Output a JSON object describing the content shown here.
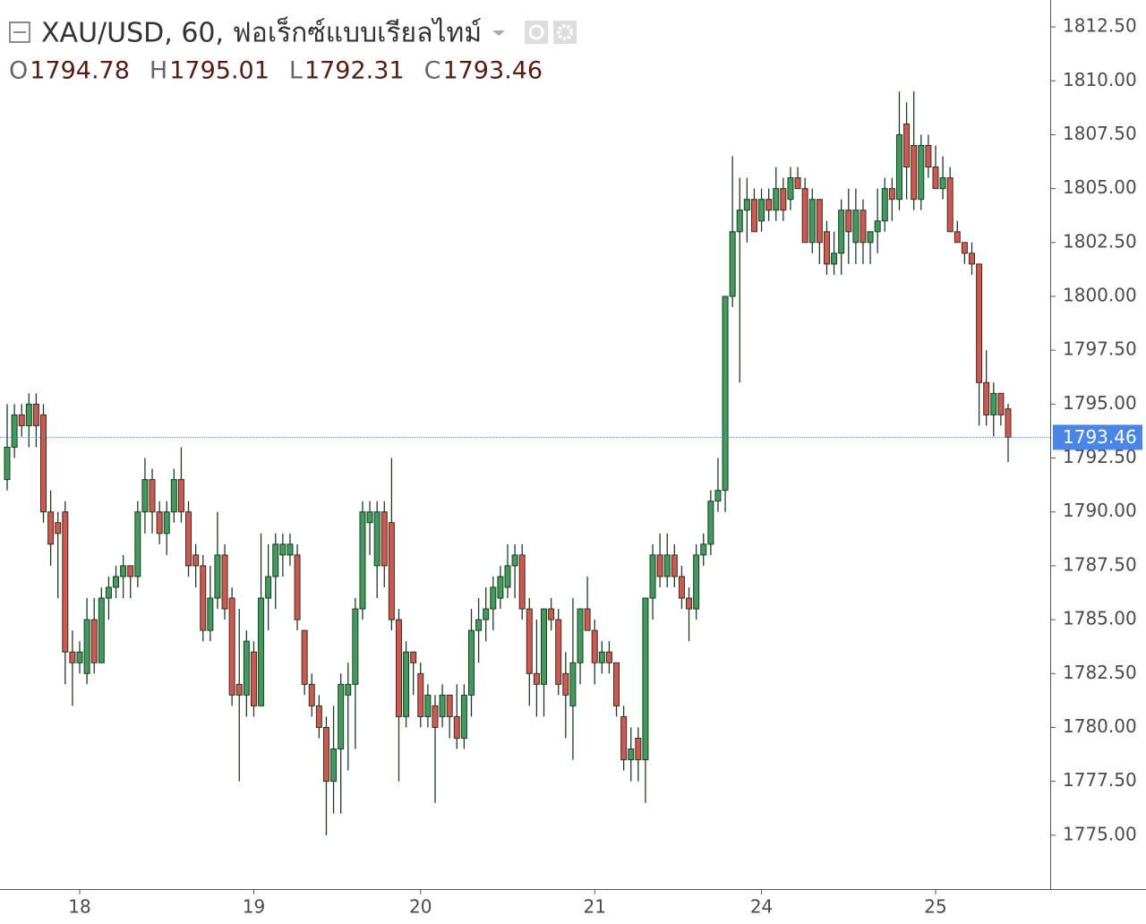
{
  "chart_data": {
    "type": "candlestick",
    "title": "XAU/USD, 60, ฟอเร็กซ์แบบเรียลไทม์",
    "ohlc_labels": [
      "O",
      "H",
      "L",
      "C"
    ],
    "up_color": "#3f9c5c",
    "down_color": "#d9534f",
    "wick_color": "#1f3b26",
    "last_price_color": "#4a86e8",
    "ylim": [
      1772.5,
      1813.75
    ],
    "yticks": [
      {
        "value": 1775,
        "label": "1775.00"
      },
      {
        "value": 1777.5,
        "label": "1777.50"
      },
      {
        "value": 1780,
        "label": "1780.00"
      },
      {
        "value": 1782.5,
        "label": "1782.50"
      },
      {
        "value": 1785,
        "label": "1785.00"
      },
      {
        "value": 1787.5,
        "label": "1787.50"
      },
      {
        "value": 1790,
        "label": "1790.00"
      },
      {
        "value": 1792.5,
        "label": "1792.50"
      },
      {
        "value": 1795,
        "label": "1795.00"
      },
      {
        "value": 1797.5,
        "label": "1797.50"
      },
      {
        "value": 1800,
        "label": "1800.00"
      },
      {
        "value": 1802.5,
        "label": "1802.50"
      },
      {
        "value": 1805,
        "label": "1805.00"
      },
      {
        "value": 1807.5,
        "label": "1807.50"
      },
      {
        "value": 1810,
        "label": "1810.00"
      },
      {
        "value": 1812.5,
        "label": "1812.50"
      }
    ],
    "categories": [
      null,
      null,
      null,
      null,
      null,
      null,
      null,
      null,
      null,
      null,
      "18",
      null,
      null,
      null,
      null,
      null,
      null,
      null,
      null,
      null,
      null,
      null,
      null,
      null,
      null,
      null,
      null,
      null,
      null,
      null,
      null,
      null,
      null,
      null,
      "19",
      null,
      null,
      null,
      null,
      null,
      null,
      null,
      null,
      null,
      null,
      null,
      null,
      null,
      null,
      null,
      null,
      null,
      null,
      null,
      null,
      null,
      null,
      "20",
      null,
      null,
      null,
      null,
      null,
      null,
      null,
      null,
      null,
      null,
      null,
      null,
      null,
      null,
      null,
      null,
      null,
      null,
      null,
      null,
      null,
      null,
      null,
      "21",
      null,
      null,
      null,
      null,
      null,
      null,
      null,
      null,
      null,
      null,
      null,
      null,
      null,
      null,
      null,
      null,
      null,
      null,
      null,
      null,
      null,
      null,
      "24",
      null,
      null,
      null,
      null,
      null,
      null,
      null,
      null,
      null,
      null,
      null,
      null,
      null,
      null,
      null,
      null,
      null,
      null,
      null,
      null,
      null,
      null,
      null,
      "25",
      null,
      null,
      null,
      null,
      null,
      null,
      null,
      null,
      null,
      null
    ],
    "ohlc": [
      [
        1791.5,
        1795,
        1791,
        1793
      ],
      [
        1793,
        1795,
        1792.5,
        1794.5
      ],
      [
        1794.5,
        1795,
        1793.5,
        1794
      ],
      [
        1794,
        1795.5,
        1793,
        1795
      ],
      [
        1795,
        1795.5,
        1793,
        1794
      ],
      [
        1794.5,
        1795,
        1789.5,
        1790
      ],
      [
        1790,
        1791,
        1787.5,
        1788.5
      ],
      [
        1789.5,
        1790,
        1786,
        1789
      ],
      [
        1790,
        1790.5,
        1782,
        1783.5
      ],
      [
        1783.5,
        1784.5,
        1781,
        1783
      ],
      [
        1783,
        1784,
        1782.5,
        1783.5
      ],
      [
        1782.5,
        1786,
        1782,
        1785
      ],
      [
        1785,
        1786,
        1782.5,
        1783
      ],
      [
        1783,
        1786.5,
        1783,
        1786
      ],
      [
        1786,
        1787,
        1785,
        1786.5
      ],
      [
        1786.5,
        1787.5,
        1786,
        1787
      ],
      [
        1787,
        1788,
        1786,
        1787.5
      ],
      [
        1787.5,
        1787.5,
        1786,
        1787
      ],
      [
        1787,
        1790.5,
        1786.5,
        1790
      ],
      [
        1790,
        1792.5,
        1789,
        1791.5
      ],
      [
        1791.5,
        1792,
        1789,
        1790
      ],
      [
        1790,
        1790.5,
        1788.5,
        1789
      ],
      [
        1789,
        1790.5,
        1788,
        1790
      ],
      [
        1790,
        1792,
        1789.5,
        1791.5
      ],
      [
        1791.5,
        1793,
        1789.5,
        1790
      ],
      [
        1790,
        1790.5,
        1787,
        1787.5
      ],
      [
        1788,
        1788.5,
        1786.5,
        1787.5
      ],
      [
        1787.5,
        1788,
        1784,
        1784.5
      ],
      [
        1784.5,
        1787.5,
        1784,
        1786
      ],
      [
        1786,
        1790,
        1785.5,
        1788
      ],
      [
        1788,
        1788.5,
        1785,
        1785.5
      ],
      [
        1786,
        1786.5,
        1781,
        1781.5
      ],
      [
        1782,
        1785.5,
        1777.5,
        1781.5
      ],
      [
        1781.5,
        1784.5,
        1780.5,
        1784
      ],
      [
        1783.5,
        1784,
        1780.5,
        1781
      ],
      [
        1781,
        1789,
        1781,
        1786
      ],
      [
        1786,
        1788.5,
        1784.5,
        1787
      ],
      [
        1787,
        1789,
        1785.5,
        1788.5
      ],
      [
        1788,
        1789,
        1787,
        1788.5
      ],
      [
        1788,
        1789,
        1787.5,
        1788.5
      ],
      [
        1788,
        1788.5,
        1784.5,
        1785
      ],
      [
        1784.5,
        1784.5,
        1781.5,
        1782
      ],
      [
        1782,
        1782.5,
        1780.5,
        1781
      ],
      [
        1781,
        1781.5,
        1779.5,
        1780
      ],
      [
        1780,
        1780.5,
        1775,
        1777.5
      ],
      [
        1777.5,
        1781,
        1776,
        1779
      ],
      [
        1779,
        1782.5,
        1776,
        1782
      ],
      [
        1781.5,
        1783,
        1778,
        1782
      ],
      [
        1782,
        1786,
        1779,
        1785.5
      ],
      [
        1785.5,
        1790.5,
        1785,
        1790
      ],
      [
        1789.5,
        1790.5,
        1788,
        1790
      ],
      [
        1787.5,
        1790.5,
        1786,
        1790
      ],
      [
        1790,
        1790.5,
        1786.5,
        1787.5
      ],
      [
        1789.5,
        1792.5,
        1784.5,
        1785
      ],
      [
        1785,
        1785.5,
        1777.5,
        1780.5
      ],
      [
        1780.5,
        1784,
        1780,
        1783.5
      ],
      [
        1783.5,
        1783.5,
        1781.5,
        1783
      ],
      [
        1782.5,
        1783,
        1780,
        1780.5
      ],
      [
        1780.5,
        1782,
        1780,
        1781.5
      ],
      [
        1781,
        1781.5,
        1776.5,
        1780
      ],
      [
        1780.5,
        1782,
        1780,
        1781.5
      ],
      [
        1781.5,
        1781.5,
        1779.5,
        1780.5
      ],
      [
        1780.5,
        1782,
        1779,
        1779.5
      ],
      [
        1779.5,
        1782,
        1779,
        1781.5
      ],
      [
        1781.5,
        1785.5,
        1780.5,
        1784.5
      ],
      [
        1784.5,
        1786,
        1783,
        1785
      ],
      [
        1785,
        1786.5,
        1784,
        1785.5
      ],
      [
        1785.5,
        1787,
        1784.5,
        1786.5
      ],
      [
        1786,
        1787.5,
        1785.5,
        1787
      ],
      [
        1786.5,
        1788.5,
        1786,
        1787.5
      ],
      [
        1787.5,
        1788.5,
        1786,
        1788
      ],
      [
        1788,
        1788.5,
        1785,
        1785.5
      ],
      [
        1785.5,
        1786,
        1781,
        1782.5
      ],
      [
        1782.5,
        1785,
        1780.5,
        1782
      ],
      [
        1782,
        1785.5,
        1780.5,
        1785.5
      ],
      [
        1785.5,
        1786,
        1784.5,
        1785
      ],
      [
        1785,
        1785.5,
        1781.5,
        1782
      ],
      [
        1782.5,
        1783.5,
        1779.5,
        1781.5
      ],
      [
        1781,
        1786,
        1778.5,
        1783
      ],
      [
        1783,
        1785.5,
        1782,
        1785.5
      ],
      [
        1785.5,
        1787,
        1784.5,
        1784.5
      ],
      [
        1784.5,
        1785,
        1782,
        1783
      ],
      [
        1783,
        1784,
        1782.5,
        1783.5
      ],
      [
        1783.5,
        1784,
        1782.5,
        1783
      ],
      [
        1783,
        1783,
        1780.5,
        1781
      ],
      [
        1780.5,
        1781,
        1778,
        1778.5
      ],
      [
        1778.5,
        1780,
        1777.5,
        1779
      ],
      [
        1779.5,
        1780,
        1777.5,
        1778.5
      ],
      [
        1778.5,
        1786,
        1776.5,
        1786
      ],
      [
        1786,
        1788.5,
        1785,
        1788
      ],
      [
        1788,
        1789,
        1786.5,
        1787
      ],
      [
        1787,
        1789,
        1786.5,
        1788
      ],
      [
        1788,
        1788.5,
        1786.5,
        1787
      ],
      [
        1787,
        1787.5,
        1785.5,
        1786
      ],
      [
        1786,
        1786.5,
        1784,
        1785.5
      ],
      [
        1785.5,
        1788.5,
        1785,
        1788
      ],
      [
        1788,
        1789,
        1787.5,
        1788.5
      ],
      [
        1788.5,
        1791,
        1788,
        1790.5
      ],
      [
        1790.5,
        1792.5,
        1790,
        1791
      ],
      [
        1791,
        1800,
        1790,
        1800
      ],
      [
        1800,
        1806.5,
        1799.5,
        1803
      ],
      [
        1803,
        1805.5,
        1796,
        1804
      ],
      [
        1804,
        1805.5,
        1802.5,
        1804.5
      ],
      [
        1804.5,
        1805,
        1803,
        1803
      ],
      [
        1803.5,
        1805,
        1803,
        1804.5
      ],
      [
        1804.5,
        1805,
        1803.5,
        1804
      ],
      [
        1804,
        1806,
        1803.5,
        1805
      ],
      [
        1805,
        1805.5,
        1803.5,
        1804
      ],
      [
        1804.5,
        1806,
        1804,
        1805.5
      ],
      [
        1805.5,
        1806,
        1805,
        1805
      ],
      [
        1805,
        1805.5,
        1802.5,
        1802.5
      ],
      [
        1802.5,
        1805,
        1802,
        1804.5
      ],
      [
        1804.5,
        1804.5,
        1801.5,
        1802.5
      ],
      [
        1803,
        1803.5,
        1801,
        1801.5
      ],
      [
        1801.5,
        1803,
        1801,
        1802
      ],
      [
        1802,
        1804.5,
        1801,
        1804
      ],
      [
        1804,
        1805,
        1801.5,
        1803
      ],
      [
        1802.5,
        1805,
        1801.5,
        1804
      ],
      [
        1804,
        1804.5,
        1801.5,
        1802.5
      ],
      [
        1802.5,
        1803,
        1801.5,
        1803
      ],
      [
        1803,
        1805,
        1802,
        1803.5
      ],
      [
        1803.5,
        1805.5,
        1803,
        1805
      ],
      [
        1805,
        1805.5,
        1803.5,
        1804.5
      ],
      [
        1804.5,
        1809.5,
        1804,
        1807.5
      ],
      [
        1808,
        1809,
        1804.5,
        1806
      ],
      [
        1807,
        1809.5,
        1804,
        1804.5
      ],
      [
        1804.5,
        1807.5,
        1804,
        1807
      ],
      [
        1807,
        1807.5,
        1805.5,
        1806
      ],
      [
        1806,
        1807,
        1805,
        1805
      ],
      [
        1805,
        1806.5,
        1804.5,
        1805.5
      ],
      [
        1805.5,
        1806,
        1803,
        1803
      ],
      [
        1803,
        1803.5,
        1802.5,
        1802.5
      ],
      [
        1802.5,
        1802.5,
        1801.5,
        1802
      ],
      [
        1802,
        1802.5,
        1801,
        1801.5
      ],
      [
        1801.5,
        1801.5,
        1794,
        1796
      ],
      [
        1796,
        1797.5,
        1794,
        1794.5
      ],
      [
        1794.5,
        1796,
        1793.5,
        1795.5
      ],
      [
        1795.5,
        1795.5,
        1794,
        1794.5
      ],
      [
        1794.78,
        1795.01,
        1792.31,
        1793.46
      ]
    ]
  }
}
